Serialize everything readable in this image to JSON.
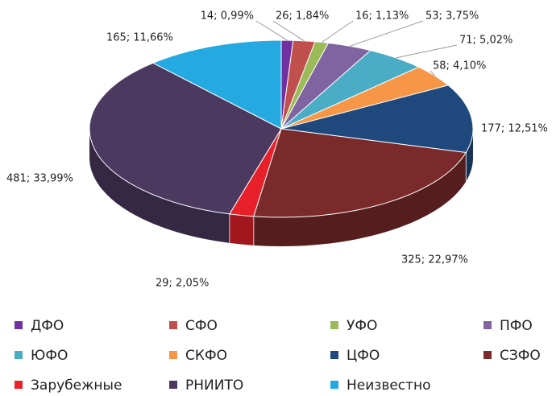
{
  "chart_data": {
    "type": "pie3d",
    "categories": [
      "ДФО",
      "СФО",
      "УФО",
      "ПФО",
      "ЮФО",
      "СКФО",
      "ЦФО",
      "СЗФО",
      "Зарубежные",
      "РНИИТО",
      "Неизвестно"
    ],
    "values": [
      14,
      26,
      16,
      53,
      71,
      58,
      177,
      325,
      29,
      481,
      165
    ],
    "value_labels": [
      "14; 0,99%",
      "26; 1,84%",
      "16; 1,13%",
      "53; 3,75%",
      "71; 5,02%",
      "58; 4,10%",
      "177; 12,51%",
      "325; 22,97%",
      "29; 2,05%",
      "481; 33,99%",
      "165; 11,66%"
    ],
    "colors": [
      "#7030a0",
      "#c0504d",
      "#9bbb59",
      "#8064a2",
      "#4bacc6",
      "#f79646",
      "#1f497d",
      "#7a2a2a",
      "#e8202a",
      "#4b3960",
      "#24a9e1"
    ],
    "legend": "bottom"
  }
}
